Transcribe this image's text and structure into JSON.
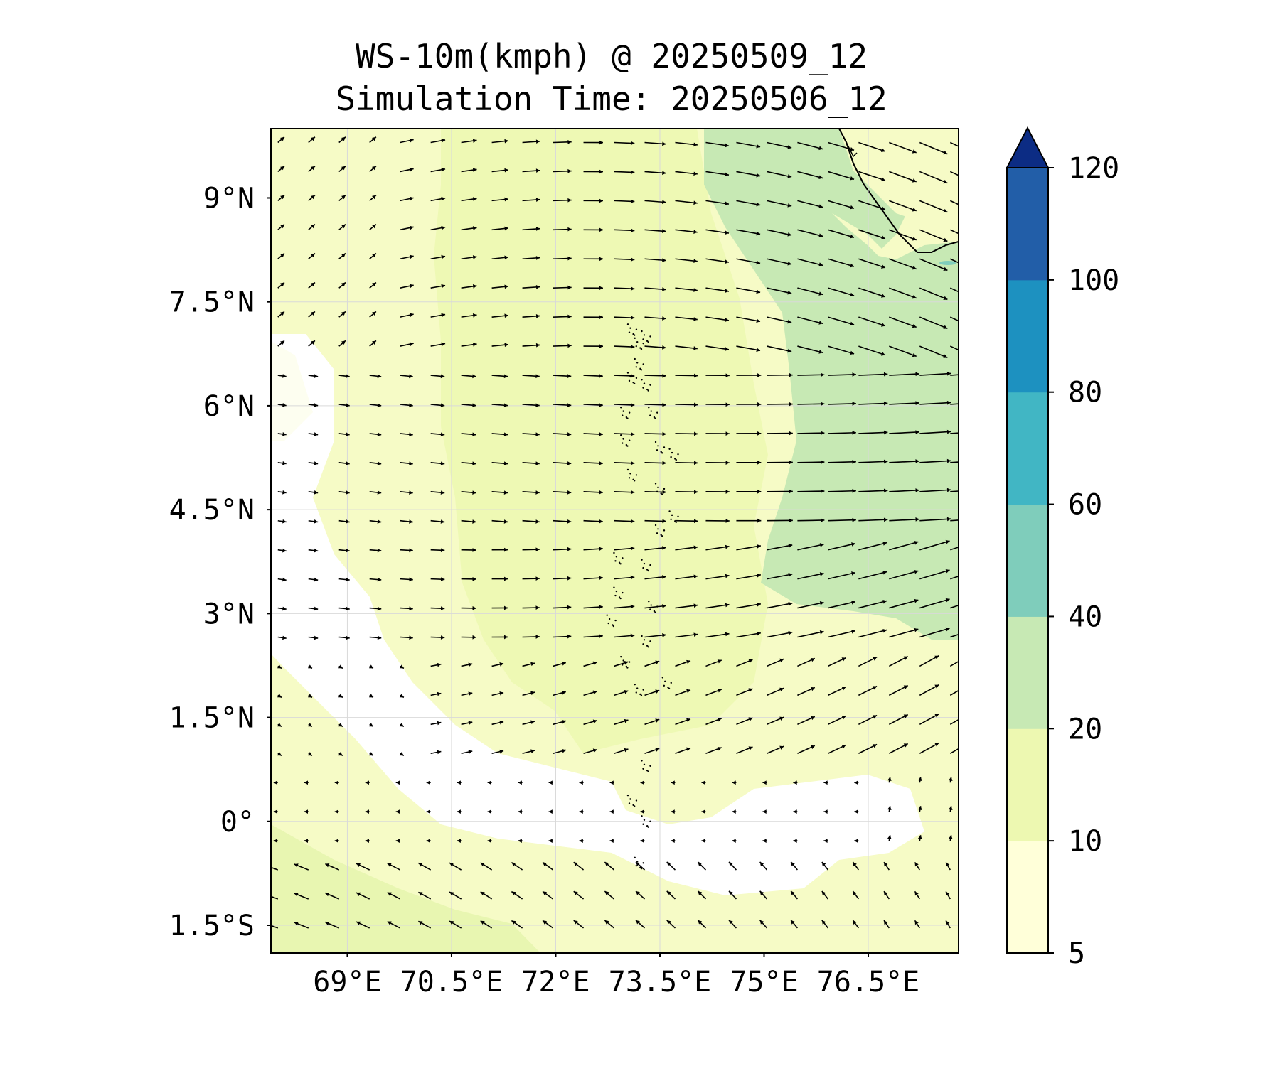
{
  "title": {
    "line1": "WS-10m(kmph) @ 20250509_12",
    "line2": "Simulation Time: 20250506_12"
  },
  "map": {
    "variable": "10 m wind speed",
    "units": "kmph",
    "lon_range": [
      67.9,
      77.8
    ],
    "lat_range": [
      -1.9,
      10.0
    ],
    "lat_ticks": [
      {
        "value": 9,
        "label": "9°N"
      },
      {
        "value": 7.5,
        "label": "7.5°N"
      },
      {
        "value": 6,
        "label": "6°N"
      },
      {
        "value": 4.5,
        "label": "4.5°N"
      },
      {
        "value": 3,
        "label": "3°N"
      },
      {
        "value": 1.5,
        "label": "1.5°N"
      },
      {
        "value": 0,
        "label": "0°"
      },
      {
        "value": -1.5,
        "label": "1.5°S"
      }
    ],
    "lon_ticks": [
      {
        "value": 69,
        "label": "69°E"
      },
      {
        "value": 70.5,
        "label": "70.5°E"
      },
      {
        "value": 72,
        "label": "72°E"
      },
      {
        "value": 73.5,
        "label": "73.5°E"
      },
      {
        "value": 75,
        "label": "75°E"
      },
      {
        "value": 76.5,
        "label": "76.5°E"
      }
    ],
    "grid": true,
    "features": [
      "Maldives atolls",
      "southern India / Sri Lanka coastline (top-right)"
    ]
  },
  "colorbar": {
    "orientation": "vertical",
    "extend": "max",
    "levels": [
      5,
      10,
      20,
      40,
      60,
      80,
      100,
      120
    ],
    "tick_labels": [
      "5",
      "10",
      "20",
      "40",
      "60",
      "80",
      "100",
      "120"
    ],
    "colors": [
      "#ffffd9",
      "#edf8b1",
      "#c7e9b4",
      "#7fcdbb",
      "#41b6c4",
      "#1d91c0",
      "#225ea8",
      "#0c2c84"
    ],
    "extend_color": "#0c2c84"
  }
}
